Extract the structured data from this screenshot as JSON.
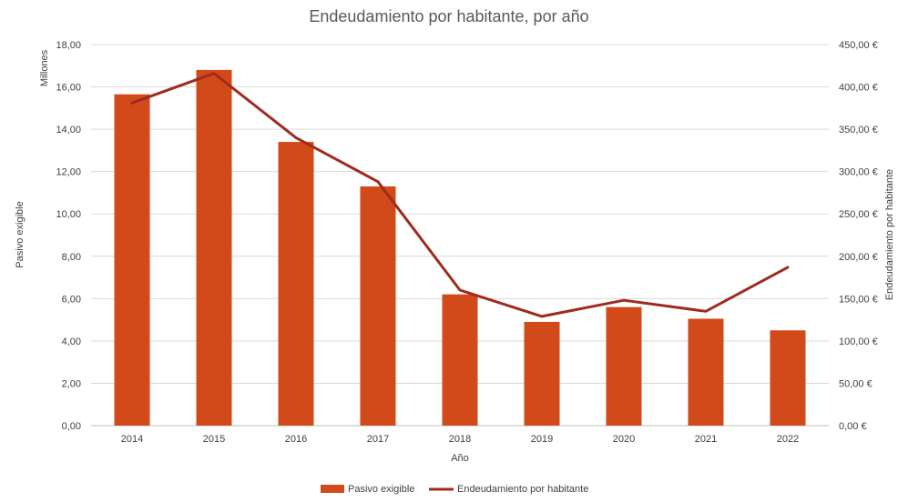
{
  "chart_data": {
    "type": "bar+line",
    "title": "Endeudamiento por habitante, por año",
    "xlabel": "Año",
    "ylabel_left": "Pasivo exigible",
    "ylabel_left_units": "Millones",
    "ylabel_right": "Endeudamiento por habitante",
    "categories": [
      "2014",
      "2015",
      "2016",
      "2017",
      "2018",
      "2019",
      "2020",
      "2021",
      "2022"
    ],
    "series": [
      {
        "name": "Pasivo exigible",
        "type": "bar",
        "axis": "left",
        "color": "#D24A19",
        "values": [
          15.65,
          16.8,
          13.4,
          11.3,
          6.2,
          4.9,
          5.6,
          5.05,
          4.5
        ]
      },
      {
        "name": "Endeudamiento por habitante",
        "type": "line",
        "axis": "right",
        "color": "#9E2B1E",
        "values": [
          381,
          416,
          340,
          288,
          160,
          129,
          148,
          135,
          187
        ]
      }
    ],
    "ylim_left": [
      0,
      18
    ],
    "ylim_right": [
      0,
      450
    ],
    "yticks_left": [
      "0,00",
      "2,00",
      "4,00",
      "6,00",
      "8,00",
      "10,00",
      "12,00",
      "14,00",
      "16,00",
      "18,00"
    ],
    "yticks_right": [
      "0,00 €",
      "50,00 €",
      "100,00 €",
      "150,00 €",
      "200,00 €",
      "250,00 €",
      "300,00 €",
      "350,00 €",
      "400,00 €",
      "450,00 €"
    ],
    "grid": true,
    "legend_position": "bottom"
  }
}
